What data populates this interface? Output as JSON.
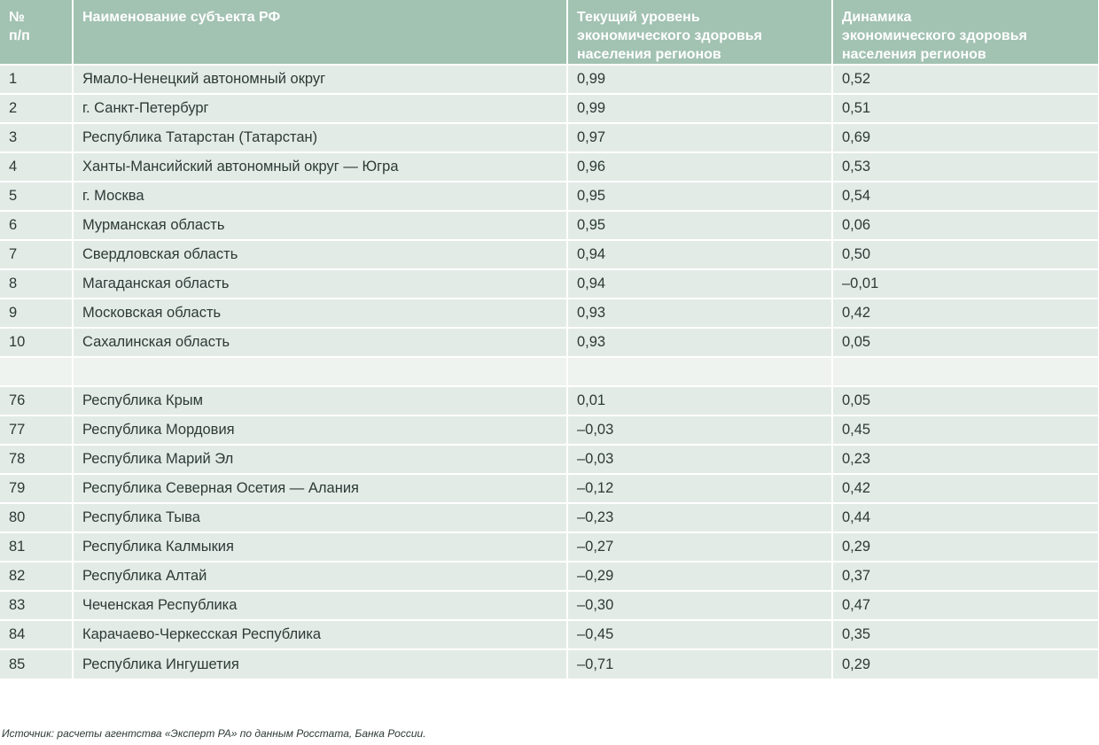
{
  "table": {
    "headers": [
      "№\nп/п",
      "Наименование субъекта РФ",
      "Текущий уровень\nэкономического здоровья\nнаселения регионов",
      "Динамика\nэкономического здоровья\nнаселения регионов"
    ],
    "rows": [
      [
        "1",
        "Ямало-Ненецкий автономный округ",
        "0,99",
        "0,52"
      ],
      [
        "2",
        "г. Санкт-Петербург",
        "0,99",
        "0,51"
      ],
      [
        "3",
        "Республика Татарстан (Татарстан)",
        "0,97",
        "0,69"
      ],
      [
        "4",
        "Ханты-Мансийский автономный округ — Югра",
        "0,96",
        "0,53"
      ],
      [
        "5",
        "г. Москва",
        "0,95",
        "0,54"
      ],
      [
        "6",
        "Мурманская область",
        "0,95",
        "0,06"
      ],
      [
        "7",
        "Свердловская область",
        "0,94",
        "0,50"
      ],
      [
        "8",
        "Магаданская область",
        "0,94",
        "–0,01"
      ],
      [
        "9",
        "Московская область",
        "0,93",
        "0,42"
      ],
      [
        "10",
        "Сахалинская область",
        "0,93",
        "0,05"
      ],
      [
        "",
        "",
        "",
        ""
      ],
      [
        "76",
        "Республика Крым",
        "0,01",
        "0,05"
      ],
      [
        "77",
        "Республика Мордовия",
        "–0,03",
        "0,45"
      ],
      [
        "78",
        "Республика Марий Эл",
        "–0,03",
        "0,23"
      ],
      [
        "79",
        "Республика Северная Осетия — Алания",
        "–0,12",
        "0,42"
      ],
      [
        "80",
        "Республика Тыва",
        "–0,23",
        "0,44"
      ],
      [
        "81",
        "Республика Калмыкия",
        "–0,27",
        "0,29"
      ],
      [
        "82",
        "Республика Алтай",
        "–0,29",
        "0,37"
      ],
      [
        "83",
        "Чеченская Республика",
        "–0,30",
        "0,47"
      ],
      [
        "84",
        "Карачаево-Черкесская Республика",
        "–0,45",
        "0,35"
      ],
      [
        "85",
        "Республика Ингушетия",
        "–0,71",
        "0,29"
      ]
    ]
  },
  "source": "Источник: расчеты агентства «Эксперт РА» по данным Росстата, Банка России."
}
